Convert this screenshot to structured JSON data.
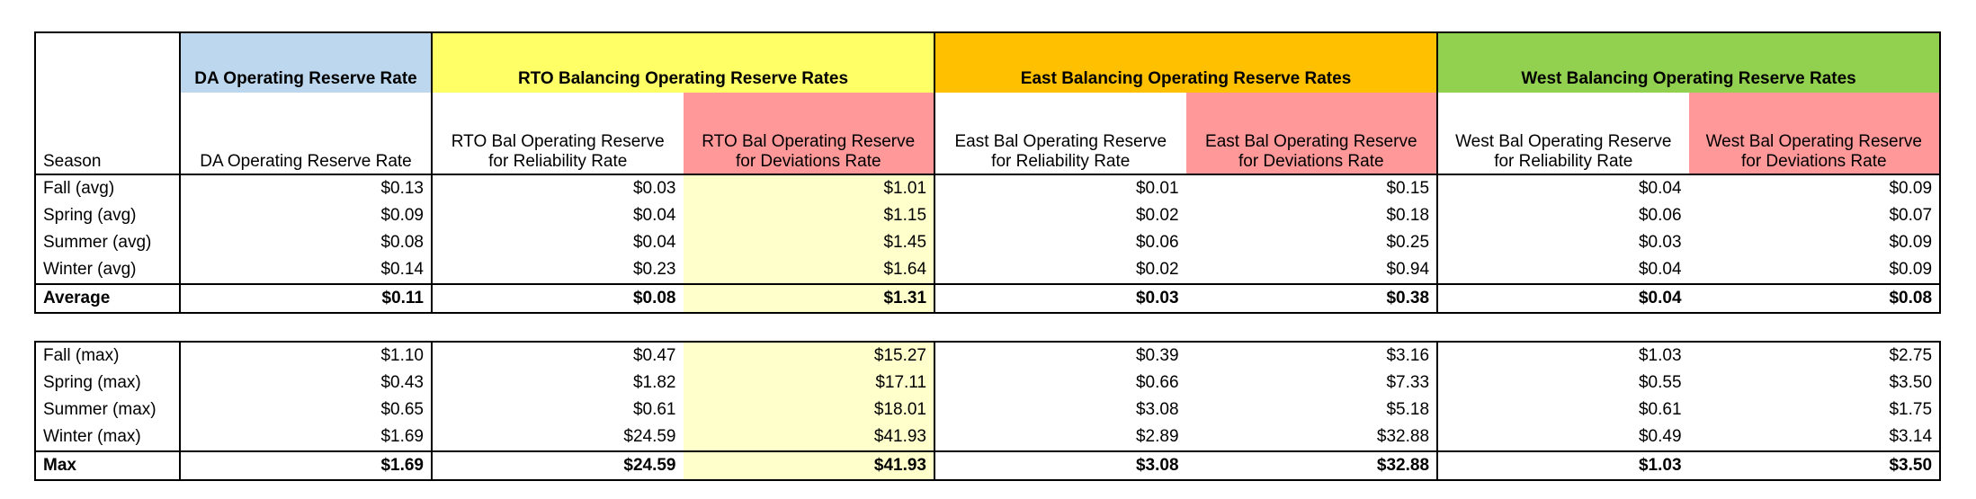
{
  "group_headers": {
    "da": "DA Operating Reserve Rate",
    "rto": "RTO Balancing Operating Reserve Rates",
    "east": "East Balancing Operating Reserve Rates",
    "west": "West Balancing Operating Reserve Rates"
  },
  "column_headers": {
    "season": "Season",
    "da": "DA Operating Reserve Rate",
    "rto_rel": "RTO Bal Operating Reserve for Reliability Rate",
    "rto_dev": "RTO Bal Operating Reserve for Deviations Rate",
    "east_rel": "East Bal Operating Reserve for Reliability Rate",
    "east_dev": "East Bal Operating Reserve for Deviations Rate",
    "west_rel": "West Bal Operating Reserve for Reliability Rate",
    "west_dev": "West Bal Operating Reserve for Deviations Rate"
  },
  "avg_rows": [
    [
      "Fall (avg)",
      "$0.13",
      "$0.03",
      "$1.01",
      "$0.01",
      "$0.15",
      "$0.04",
      "$0.09"
    ],
    [
      "Spring (avg)",
      "$0.09",
      "$0.04",
      "$1.15",
      "$0.02",
      "$0.18",
      "$0.06",
      "$0.07"
    ],
    [
      "Summer (avg)",
      "$0.08",
      "$0.04",
      "$1.45",
      "$0.06",
      "$0.25",
      "$0.03",
      "$0.09"
    ],
    [
      "Winter (avg)",
      "$0.14",
      "$0.23",
      "$1.64",
      "$0.02",
      "$0.94",
      "$0.04",
      "$0.09"
    ]
  ],
  "avg_total": [
    "Average",
    "$0.11",
    "$0.08",
    "$1.31",
    "$0.03",
    "$0.38",
    "$0.04",
    "$0.08"
  ],
  "max_rows": [
    [
      "Fall (max)",
      "$1.10",
      "$0.47",
      "$15.27",
      "$0.39",
      "$3.16",
      "$1.03",
      "$2.75"
    ],
    [
      "Spring (max)",
      "$0.43",
      "$1.82",
      "$17.11",
      "$0.66",
      "$7.33",
      "$0.55",
      "$3.50"
    ],
    [
      "Summer (max)",
      "$0.65",
      "$0.61",
      "$18.01",
      "$3.08",
      "$5.18",
      "$0.61",
      "$1.75"
    ],
    [
      "Winter (max)",
      "$1.69",
      "$24.59",
      "$41.93",
      "$2.89",
      "$32.88",
      "$0.49",
      "$3.14"
    ]
  ],
  "max_total": [
    "Max",
    "$1.69",
    "$24.59",
    "$41.93",
    "$3.08",
    "$32.88",
    "$1.03",
    "$3.50"
  ],
  "colors": {
    "da_header": "#bdd7ee",
    "rto_header": "#ffff66",
    "east_header": "#ffc000",
    "west_header": "#92d050",
    "deviations_header": "#ff9999",
    "rto_deviations_cells": "#ffffcc"
  }
}
